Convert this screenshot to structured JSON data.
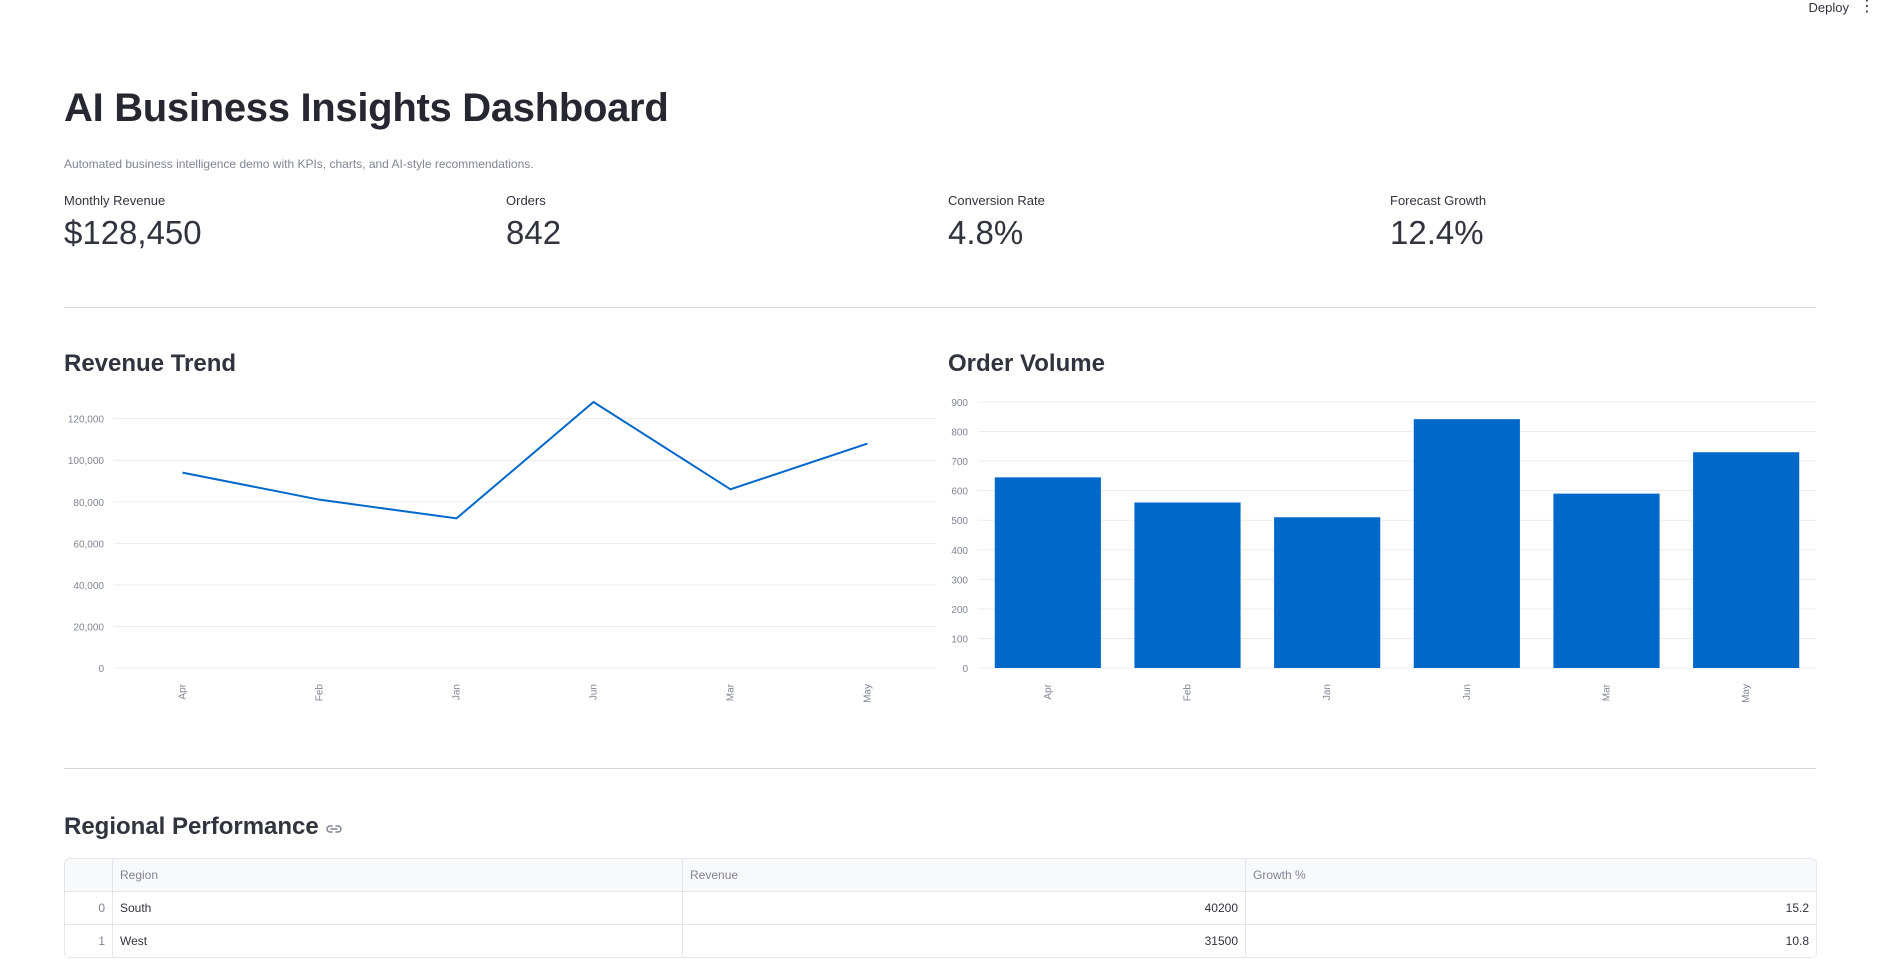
{
  "topbar": {
    "deploy_label": "Deploy",
    "menu_icon": "vertical-dots-icon"
  },
  "header": {
    "title": "AI Business Insights Dashboard",
    "subtitle": "Automated business intelligence demo with KPIs, charts, and AI-style recommendations."
  },
  "kpis": [
    {
      "label": "Monthly Revenue",
      "value": "$128,450"
    },
    {
      "label": "Orders",
      "value": "842"
    },
    {
      "label": "Conversion Rate",
      "value": "4.8%"
    },
    {
      "label": "Forecast Growth",
      "value": "12.4%"
    }
  ],
  "colors": {
    "accent": "#0068c9",
    "grid": "#ececf0",
    "axis_text": "#808495"
  },
  "chart_data": [
    {
      "type": "line",
      "title": "Revenue Trend",
      "categories": [
        "Apr",
        "Feb",
        "Jan",
        "Jun",
        "Mar",
        "May"
      ],
      "values": [
        94000,
        81000,
        72000,
        128000,
        86000,
        108000
      ],
      "y_ticks": [
        "0",
        "20,000",
        "40,000",
        "60,000",
        "80,000",
        "100,000",
        "120,000"
      ],
      "ylim": [
        0,
        128000
      ],
      "grid": true
    },
    {
      "type": "bar",
      "title": "Order Volume",
      "categories": [
        "Apr",
        "Feb",
        "Jan",
        "Jun",
        "Mar",
        "May"
      ],
      "values": [
        645,
        560,
        510,
        842,
        590,
        730
      ],
      "y_ticks": [
        "0",
        "100",
        "200",
        "300",
        "400",
        "500",
        "600",
        "700",
        "800",
        "900"
      ],
      "ylim": [
        0,
        900
      ],
      "grid": true
    }
  ],
  "regional": {
    "title": "Regional Performance",
    "link_icon": "link-icon",
    "columns": [
      "",
      "Region",
      "Revenue",
      "Growth %"
    ],
    "rows": [
      {
        "index": "0",
        "region": "South",
        "revenue": "40200",
        "growth": "15.2"
      },
      {
        "index": "1",
        "region": "West",
        "revenue": "31500",
        "growth": "10.8"
      }
    ]
  }
}
